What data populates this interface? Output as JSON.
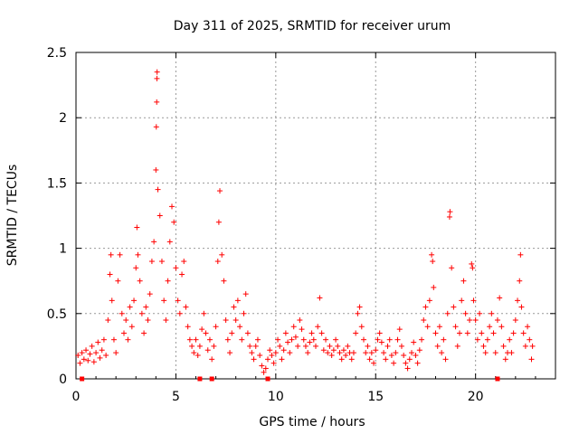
{
  "chart_data": {
    "type": "scatter",
    "title": "Day 311 of 2025, SRMTID for receiver urum",
    "xlabel": "GPS time / hours",
    "ylabel": "SRMTID / TECUs",
    "xlim": [
      0,
      24
    ],
    "ylim": [
      0,
      2.5
    ],
    "grid": true,
    "marker": "+",
    "marker_color": "#ff0000",
    "x_ticks": [
      0,
      5,
      10,
      15,
      20
    ],
    "x_tick_labels": [
      "0",
      "5",
      "10",
      "15",
      "20"
    ],
    "y_ticks": [
      0,
      0.5,
      1,
      1.5,
      2,
      2.5
    ],
    "y_tick_labels": [
      "0",
      "0.5",
      "1",
      "1.5",
      "2",
      "2.5"
    ],
    "series": [
      {
        "name": "SRMTID",
        "points": [
          [
            0.1,
            0.18
          ],
          [
            0.2,
            0.12
          ],
          [
            0.3,
            0.2
          ],
          [
            0.4,
            0.15
          ],
          [
            0.5,
            0.22
          ],
          [
            0.6,
            0.14
          ],
          [
            0.7,
            0.19
          ],
          [
            0.8,
            0.25
          ],
          [
            0.9,
            0.13
          ],
          [
            1.0,
            0.2
          ],
          [
            1.1,
            0.28
          ],
          [
            1.2,
            0.16
          ],
          [
            1.3,
            0.22
          ],
          [
            1.4,
            0.3
          ],
          [
            1.5,
            0.18
          ],
          [
            1.6,
            0.45
          ],
          [
            1.7,
            0.8
          ],
          [
            1.75,
            0.95
          ],
          [
            1.8,
            0.6
          ],
          [
            1.9,
            0.3
          ],
          [
            2.0,
            0.2
          ],
          [
            2.1,
            0.75
          ],
          [
            2.2,
            0.95
          ],
          [
            2.3,
            0.5
          ],
          [
            2.4,
            0.35
          ],
          [
            2.5,
            0.45
          ],
          [
            2.6,
            0.3
          ],
          [
            2.7,
            0.55
          ],
          [
            2.8,
            0.4
          ],
          [
            2.9,
            0.6
          ],
          [
            3.0,
            0.85
          ],
          [
            3.05,
            1.16
          ],
          [
            3.1,
            0.95
          ],
          [
            3.2,
            0.75
          ],
          [
            3.3,
            0.5
          ],
          [
            3.4,
            0.35
          ],
          [
            3.5,
            0.55
          ],
          [
            3.6,
            0.45
          ],
          [
            3.7,
            0.65
          ],
          [
            3.8,
            0.9
          ],
          [
            3.9,
            1.05
          ],
          [
            4.0,
            1.6
          ],
          [
            4.02,
            1.93
          ],
          [
            4.04,
            2.12
          ],
          [
            4.05,
            2.3
          ],
          [
            4.06,
            2.35
          ],
          [
            4.1,
            1.45
          ],
          [
            4.2,
            1.25
          ],
          [
            4.3,
            0.9
          ],
          [
            4.4,
            0.6
          ],
          [
            4.5,
            0.45
          ],
          [
            4.6,
            0.75
          ],
          [
            4.7,
            1.05
          ],
          [
            4.8,
            1.32
          ],
          [
            4.9,
            1.2
          ],
          [
            5.0,
            0.85
          ],
          [
            5.1,
            0.6
          ],
          [
            5.2,
            0.5
          ],
          [
            5.3,
            0.8
          ],
          [
            5.4,
            0.9
          ],
          [
            5.5,
            0.55
          ],
          [
            5.6,
            0.4
          ],
          [
            5.7,
            0.3
          ],
          [
            5.8,
            0.25
          ],
          [
            5.9,
            0.2
          ],
          [
            6.0,
            0.3
          ],
          [
            6.1,
            0.18
          ],
          [
            6.2,
            0.25
          ],
          [
            6.3,
            0.38
          ],
          [
            6.4,
            0.5
          ],
          [
            6.5,
            0.35
          ],
          [
            6.6,
            0.22
          ],
          [
            6.7,
            0.3
          ],
          [
            6.8,
            0.15
          ],
          [
            6.9,
            0.25
          ],
          [
            7.0,
            0.4
          ],
          [
            7.1,
            0.9
          ],
          [
            7.15,
            1.2
          ],
          [
            7.2,
            1.44
          ],
          [
            7.3,
            0.95
          ],
          [
            7.4,
            0.75
          ],
          [
            7.5,
            0.45
          ],
          [
            7.6,
            0.3
          ],
          [
            7.7,
            0.2
          ],
          [
            7.8,
            0.35
          ],
          [
            7.9,
            0.55
          ],
          [
            8.0,
            0.45
          ],
          [
            8.1,
            0.6
          ],
          [
            8.2,
            0.4
          ],
          [
            8.3,
            0.3
          ],
          [
            8.4,
            0.5
          ],
          [
            8.5,
            0.65
          ],
          [
            8.6,
            0.35
          ],
          [
            8.7,
            0.25
          ],
          [
            8.8,
            0.2
          ],
          [
            8.9,
            0.15
          ],
          [
            9.0,
            0.25
          ],
          [
            9.1,
            0.3
          ],
          [
            9.2,
            0.18
          ],
          [
            9.3,
            0.1
          ],
          [
            9.4,
            0.05
          ],
          [
            9.5,
            0.08
          ],
          [
            9.6,
            0.15
          ],
          [
            9.7,
            0.22
          ],
          [
            9.8,
            0.18
          ],
          [
            9.9,
            0.12
          ],
          [
            10.0,
            0.2
          ],
          [
            10.1,
            0.3
          ],
          [
            10.2,
            0.25
          ],
          [
            10.3,
            0.15
          ],
          [
            10.4,
            0.22
          ],
          [
            10.5,
            0.35
          ],
          [
            10.6,
            0.28
          ],
          [
            10.7,
            0.2
          ],
          [
            10.8,
            0.3
          ],
          [
            10.9,
            0.4
          ],
          [
            11.0,
            0.32
          ],
          [
            11.1,
            0.25
          ],
          [
            11.2,
            0.45
          ],
          [
            11.3,
            0.38
          ],
          [
            11.4,
            0.3
          ],
          [
            11.5,
            0.25
          ],
          [
            11.6,
            0.2
          ],
          [
            11.7,
            0.28
          ],
          [
            11.8,
            0.35
          ],
          [
            11.9,
            0.3
          ],
          [
            12.0,
            0.25
          ],
          [
            12.1,
            0.4
          ],
          [
            12.2,
            0.62
          ],
          [
            12.3,
            0.35
          ],
          [
            12.4,
            0.22
          ],
          [
            12.5,
            0.3
          ],
          [
            12.6,
            0.2
          ],
          [
            12.7,
            0.25
          ],
          [
            12.8,
            0.18
          ],
          [
            12.9,
            0.22
          ],
          [
            13.0,
            0.3
          ],
          [
            13.1,
            0.25
          ],
          [
            13.2,
            0.2
          ],
          [
            13.3,
            0.15
          ],
          [
            13.4,
            0.22
          ],
          [
            13.5,
            0.18
          ],
          [
            13.6,
            0.25
          ],
          [
            13.7,
            0.2
          ],
          [
            13.8,
            0.15
          ],
          [
            13.9,
            0.2
          ],
          [
            14.0,
            0.35
          ],
          [
            14.1,
            0.5
          ],
          [
            14.2,
            0.55
          ],
          [
            14.3,
            0.4
          ],
          [
            14.4,
            0.3
          ],
          [
            14.5,
            0.2
          ],
          [
            14.6,
            0.25
          ],
          [
            14.7,
            0.15
          ],
          [
            14.8,
            0.2
          ],
          [
            14.9,
            0.12
          ],
          [
            15.0,
            0.22
          ],
          [
            15.1,
            0.3
          ],
          [
            15.2,
            0.35
          ],
          [
            15.3,
            0.28
          ],
          [
            15.4,
            0.2
          ],
          [
            15.5,
            0.15
          ],
          [
            15.6,
            0.25
          ],
          [
            15.7,
            0.3
          ],
          [
            15.8,
            0.18
          ],
          [
            15.9,
            0.12
          ],
          [
            16.0,
            0.2
          ],
          [
            16.1,
            0.3
          ],
          [
            16.2,
            0.38
          ],
          [
            16.3,
            0.25
          ],
          [
            16.4,
            0.18
          ],
          [
            16.5,
            0.12
          ],
          [
            16.6,
            0.08
          ],
          [
            16.7,
            0.15
          ],
          [
            16.8,
            0.2
          ],
          [
            16.9,
            0.28
          ],
          [
            17.0,
            0.18
          ],
          [
            17.1,
            0.12
          ],
          [
            17.2,
            0.22
          ],
          [
            17.3,
            0.3
          ],
          [
            17.4,
            0.45
          ],
          [
            17.5,
            0.55
          ],
          [
            17.6,
            0.4
          ],
          [
            17.7,
            0.6
          ],
          [
            17.8,
            0.95
          ],
          [
            17.85,
            0.9
          ],
          [
            17.9,
            0.7
          ],
          [
            18.0,
            0.35
          ],
          [
            18.1,
            0.25
          ],
          [
            18.2,
            0.4
          ],
          [
            18.3,
            0.2
          ],
          [
            18.4,
            0.3
          ],
          [
            18.5,
            0.15
          ],
          [
            18.6,
            0.5
          ],
          [
            18.7,
            1.24
          ],
          [
            18.72,
            1.28
          ],
          [
            18.8,
            0.85
          ],
          [
            18.9,
            0.55
          ],
          [
            19.0,
            0.4
          ],
          [
            19.1,
            0.25
          ],
          [
            19.2,
            0.35
          ],
          [
            19.3,
            0.6
          ],
          [
            19.4,
            0.75
          ],
          [
            19.5,
            0.5
          ],
          [
            19.6,
            0.35
          ],
          [
            19.7,
            0.45
          ],
          [
            19.8,
            0.88
          ],
          [
            19.85,
            0.85
          ],
          [
            19.9,
            0.6
          ],
          [
            20.0,
            0.45
          ],
          [
            20.1,
            0.3
          ],
          [
            20.2,
            0.5
          ],
          [
            20.3,
            0.35
          ],
          [
            20.4,
            0.25
          ],
          [
            20.5,
            0.2
          ],
          [
            20.6,
            0.3
          ],
          [
            20.7,
            0.4
          ],
          [
            20.8,
            0.5
          ],
          [
            20.9,
            0.35
          ],
          [
            21.0,
            0.2
          ],
          [
            21.1,
            0.45
          ],
          [
            21.2,
            0.62
          ],
          [
            21.3,
            0.4
          ],
          [
            21.4,
            0.25
          ],
          [
            21.5,
            0.15
          ],
          [
            21.6,
            0.2
          ],
          [
            21.7,
            0.3
          ],
          [
            21.8,
            0.2
          ],
          [
            21.9,
            0.35
          ],
          [
            22.0,
            0.45
          ],
          [
            22.1,
            0.6
          ],
          [
            22.2,
            0.75
          ],
          [
            22.25,
            0.95
          ],
          [
            22.3,
            0.55
          ],
          [
            22.4,
            0.35
          ],
          [
            22.5,
            0.25
          ],
          [
            22.6,
            0.4
          ],
          [
            22.7,
            0.3
          ],
          [
            22.8,
            0.15
          ],
          [
            22.85,
            0.25
          ]
        ]
      }
    ],
    "x_markers_at_zero": [
      0.3,
      6.2,
      6.8,
      9.6,
      21.1
    ]
  }
}
